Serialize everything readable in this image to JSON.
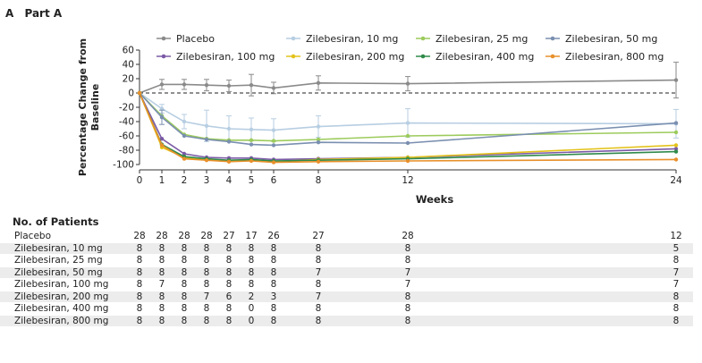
{
  "panel": {
    "letter": "A",
    "title": "Part A"
  },
  "chart_data": {
    "type": "line",
    "ylabel": "Percentage Change from Baseline",
    "xlabel": "Weeks",
    "xlim": [
      0,
      24
    ],
    "ylim": [
      -100,
      60
    ],
    "xticks": [
      0,
      1,
      2,
      3,
      4,
      5,
      6,
      8,
      12,
      24
    ],
    "yticks": [
      60,
      40,
      20,
      0,
      -20,
      -40,
      -60,
      -80,
      -100
    ],
    "reference_line": 0,
    "legend_placement": "top",
    "series": [
      {
        "name": "Placebo",
        "color": "#8a8a8a",
        "x": [
          0,
          1,
          2,
          3,
          4,
          5,
          6,
          8,
          12,
          24
        ],
        "y": [
          0,
          12,
          12,
          11,
          10,
          11,
          7,
          14,
          13,
          18
        ],
        "err": [
          0,
          7,
          7,
          8,
          8,
          15,
          8,
          10,
          10,
          25
        ]
      },
      {
        "name": "Zilebesiran, 10 mg",
        "color": "#b7cee2",
        "x": [
          0,
          1,
          2,
          3,
          4,
          5,
          6,
          8,
          12,
          24
        ],
        "y": [
          0,
          -22,
          -40,
          -46,
          -50,
          -51,
          -52,
          -47,
          -42,
          -43
        ],
        "err": [
          0,
          6,
          10,
          22,
          18,
          16,
          16,
          15,
          20,
          20
        ]
      },
      {
        "name": "Zilebesiran, 25 mg",
        "color": "#9ccb5c",
        "x": [
          0,
          1,
          2,
          3,
          4,
          5,
          6,
          8,
          12,
          24
        ],
        "y": [
          0,
          -32,
          -58,
          -64,
          -66,
          -66,
          -67,
          -65,
          -60,
          -55
        ],
        "err": [
          0,
          0,
          0,
          0,
          0,
          0,
          0,
          0,
          0,
          0
        ]
      },
      {
        "name": "Zilebesiran, 50 mg",
        "color": "#7a8fb0",
        "x": [
          0,
          1,
          2,
          3,
          4,
          5,
          6,
          8,
          12,
          24
        ],
        "y": [
          0,
          -34,
          -60,
          -65,
          -68,
          -72,
          -73,
          -69,
          -70,
          -42
        ],
        "err": [
          0,
          10,
          0,
          0,
          0,
          0,
          0,
          0,
          0,
          0
        ]
      },
      {
        "name": "Zilebesiran, 100 mg",
        "color": "#7b5aa6",
        "x": [
          0,
          1,
          2,
          3,
          4,
          5,
          6,
          8,
          12,
          24
        ],
        "y": [
          0,
          -64,
          -85,
          -90,
          -91,
          -91,
          -93,
          -92,
          -90,
          -78
        ],
        "err": [
          0,
          0,
          0,
          0,
          0,
          0,
          0,
          0,
          0,
          0
        ]
      },
      {
        "name": "Zilebesiran, 200 mg",
        "color": "#e3c21a",
        "x": [
          0,
          1,
          2,
          3,
          4,
          5,
          6,
          8,
          12,
          24
        ],
        "y": [
          0,
          -76,
          -90,
          -93,
          -95,
          -94,
          -96,
          -93,
          -90,
          -73
        ],
        "err": [
          0,
          0,
          0,
          0,
          0,
          0,
          0,
          0,
          0,
          0
        ]
      },
      {
        "name": "Zilebesiran, 400 mg",
        "color": "#2f8a4a",
        "x": [
          0,
          1,
          2,
          3,
          4,
          5,
          6,
          8,
          12,
          24
        ],
        "y": [
          0,
          -72,
          -89,
          -92,
          -94,
          -93,
          -95,
          -94,
          -92,
          -82
        ],
        "err": [
          0,
          0,
          0,
          0,
          0,
          0,
          0,
          0,
          0,
          0
        ]
      },
      {
        "name": "Zilebesiran, 800 mg",
        "color": "#e8902a",
        "x": [
          0,
          1,
          2,
          3,
          4,
          5,
          6,
          8,
          12,
          24
        ],
        "y": [
          0,
          -73,
          -92,
          -94,
          -96,
          -95,
          -97,
          -96,
          -95,
          -93
        ],
        "err": [
          0,
          0,
          0,
          0,
          0,
          0,
          0,
          0,
          0,
          0
        ]
      }
    ]
  },
  "patients": {
    "heading": "No. of Patients",
    "weeks": [
      0,
      1,
      2,
      3,
      4,
      5,
      6,
      8,
      12,
      24
    ],
    "rows": [
      {
        "label": "Placebo",
        "values": [
          "28",
          "28",
          "28",
          "28",
          "27",
          "17",
          "26",
          "27",
          "28",
          "12"
        ]
      },
      {
        "label": "Zilebesiran, 10 mg",
        "values": [
          "8",
          "8",
          "8",
          "8",
          "8",
          "8",
          "8",
          "8",
          "8",
          "5"
        ]
      },
      {
        "label": "Zilebesiran, 25 mg",
        "values": [
          "8",
          "8",
          "8",
          "8",
          "8",
          "8",
          "8",
          "8",
          "8",
          "8"
        ]
      },
      {
        "label": "Zilebesiran, 50 mg",
        "values": [
          "8",
          "8",
          "8",
          "8",
          "8",
          "8",
          "8",
          "7",
          "7",
          "7"
        ]
      },
      {
        "label": "Zilebesiran, 100 mg",
        "values": [
          "8",
          "7",
          "8",
          "8",
          "8",
          "8",
          "8",
          "8",
          "7",
          "7"
        ]
      },
      {
        "label": "Zilebesiran, 200 mg",
        "values": [
          "8",
          "8",
          "8",
          "7",
          "6",
          "2",
          "3",
          "7",
          "8",
          "8"
        ]
      },
      {
        "label": "Zilebesiran, 400 mg",
        "values": [
          "8",
          "8",
          "8",
          "8",
          "8",
          "0",
          "8",
          "8",
          "8",
          "8"
        ]
      },
      {
        "label": "Zilebesiran, 800 mg",
        "values": [
          "8",
          "8",
          "8",
          "8",
          "8",
          "0",
          "8",
          "8",
          "8",
          "8"
        ]
      }
    ]
  }
}
